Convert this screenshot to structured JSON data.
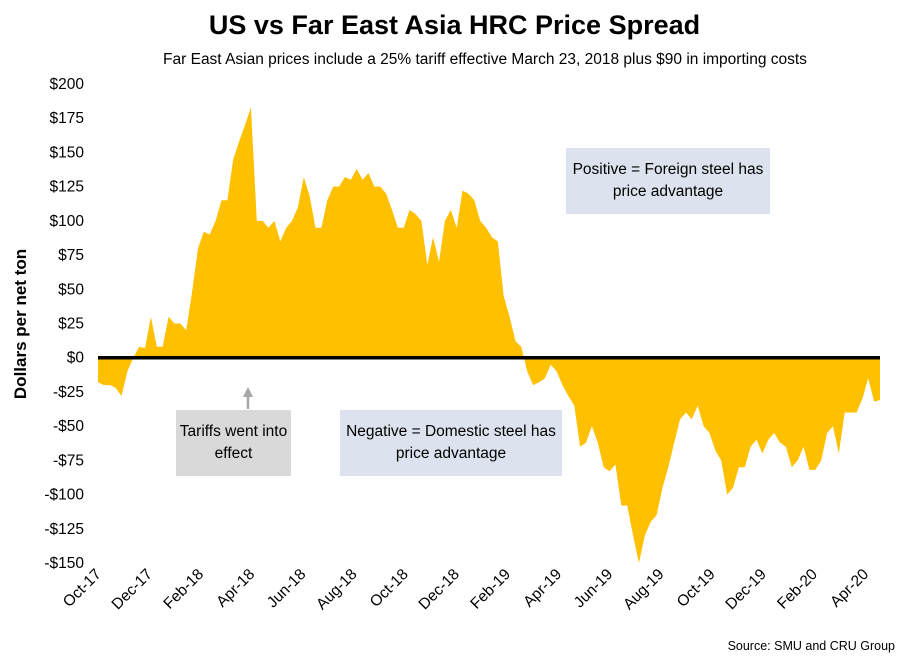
{
  "chart_data": {
    "type": "area",
    "title": "US vs Far East Asia HRC Price Spread",
    "subtitle": "Far East Asian prices include a 25% tariff effective March 23, 2018 plus $90 in importing costs",
    "ylabel": "Dollars per net ton",
    "xlabel": "",
    "ylim": [
      -150,
      200
    ],
    "y_ticks": [
      200,
      175,
      150,
      125,
      100,
      75,
      50,
      25,
      0,
      -25,
      -50,
      -75,
      -100,
      -125,
      -150
    ],
    "y_tick_labels": [
      "$200",
      "$175",
      "$150",
      "$125",
      "$100",
      "$75",
      "$50",
      "$25",
      "$0",
      "-$25",
      "-$50",
      "-$75",
      "-$100",
      "-$125",
      "-$150"
    ],
    "x_tick_labels": [
      "Oct-17",
      "Dec-17",
      "Feb-18",
      "Apr-18",
      "Jun-18",
      "Aug-18",
      "Oct-18",
      "Dec-18",
      "Feb-19",
      "Apr-19",
      "Jun-19",
      "Aug-19",
      "Oct-19",
      "Dec-19",
      "Feb-20",
      "Apr-20"
    ],
    "x_start_label": "Oct-17",
    "x_unit": "weeks since Oct-17",
    "x_ticks_weeks": [
      0,
      8.7,
      17.4,
      26.1,
      34.8,
      43.5,
      52.2,
      60.9,
      69.6,
      78.3,
      87,
      95.7,
      104.4,
      113.1,
      121.8,
      130.5
    ],
    "series": [
      {
        "name": "US vs Far East Asia HRC Price Spread",
        "color": "#ffc000",
        "values": [
          -18,
          -20,
          -20,
          -22,
          -28,
          -10,
          0,
          8,
          7,
          30,
          8,
          8,
          30,
          25,
          25,
          20,
          48,
          80,
          92,
          90,
          100,
          115,
          115,
          145,
          158,
          170,
          183,
          100,
          100,
          95,
          100,
          85,
          95,
          100,
          110,
          132,
          118,
          95,
          95,
          115,
          125,
          125,
          132,
          130,
          138,
          130,
          135,
          125,
          125,
          120,
          108,
          95,
          95,
          108,
          105,
          100,
          68,
          88,
          70,
          100,
          108,
          95,
          122,
          120,
          115,
          100,
          95,
          88,
          85,
          45,
          30,
          12,
          8,
          -10,
          -20,
          -18,
          -15,
          -5,
          -10,
          -20,
          -28,
          -35,
          -65,
          -62,
          -50,
          -62,
          -80,
          -83,
          -78,
          -108,
          -108,
          -130,
          -150,
          -130,
          -120,
          -115,
          -95,
          -80,
          -62,
          -45,
          -40,
          -45,
          -35,
          -50,
          -55,
          -68,
          -75,
          -100,
          -95,
          -80,
          -80,
          -65,
          -60,
          -70,
          -60,
          -55,
          -62,
          -65,
          -80,
          -75,
          -65,
          -82,
          -82,
          -75,
          -55,
          -50,
          -70,
          -40,
          -40,
          -40,
          -30,
          -15,
          -32,
          -31
        ]
      }
    ],
    "annotations": {
      "positive": "Positive = Foreign steel has price advantage",
      "negative": "Negative = Domestic steel has price advantage",
      "tariffs": "Tariffs went into effect"
    },
    "tariff_week": 25,
    "source": "Source: SMU and CRU Group",
    "grid": false
  }
}
